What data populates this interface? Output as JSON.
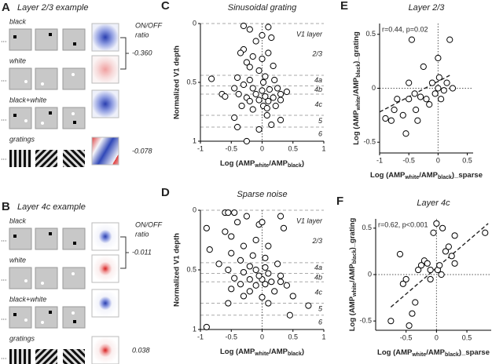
{
  "stimulus_panels": [
    {
      "letter": "A",
      "title": "Layer 2/3 example",
      "rows": [
        "black",
        "white",
        "black+white",
        "gratings"
      ],
      "ratio_header": [
        "ON/OFF",
        "ratio"
      ],
      "ratios": [
        "-0.360",
        "-0.078"
      ]
    },
    {
      "letter": "B",
      "title": "Layer 4c example",
      "rows": [
        "black",
        "white",
        "black+white",
        "gratings"
      ],
      "ratio_header": [
        "ON/OFF",
        "ratio"
      ],
      "ratios": [
        "-0.011",
        "0.038"
      ]
    }
  ],
  "chart_data": [
    {
      "type": "scatter",
      "letter": "C",
      "title": "Sinusoidal grating",
      "ylabel": "Normalized V1 depth",
      "xlabel_parts": [
        "Log (AMP",
        "white",
        "/AMP",
        "black",
        ")"
      ],
      "xlim": [
        -1,
        1
      ],
      "xticks": [
        -1,
        -0.5,
        0,
        0.5,
        1
      ],
      "ylim": [
        1,
        0
      ],
      "yticks": [
        0,
        0.5,
        1
      ],
      "zero_lines": [
        "x"
      ],
      "layer_header": "V1 layer",
      "layer_labels": [
        "2/3",
        "4a",
        "4b",
        "4c",
        "5",
        "6"
      ],
      "layer_boundaries": [
        0,
        0.44,
        0.53,
        0.6,
        0.78,
        0.88,
        1
      ],
      "x": [
        -0.3,
        -0.2,
        0.1,
        0.0,
        -0.1,
        0.15,
        -0.3,
        -0.35,
        -0.15,
        0.0,
        -0.25,
        0.18,
        0.1,
        -0.05,
        -0.2,
        0.05,
        -0.4,
        -0.2,
        0.02,
        0.2,
        -0.82,
        -0.65,
        -0.6,
        -0.45,
        -0.3,
        -0.15,
        0.0,
        0.12,
        0.25,
        0.3,
        -0.38,
        -0.25,
        -0.1,
        0.05,
        0.18,
        -0.05,
        0.1,
        -0.2,
        0.3,
        0.4,
        -0.33,
        0.02,
        0.08,
        -0.15,
        0.22,
        -0.45,
        0.3,
        -0.4,
        0.15,
        -0.05,
        -0.25,
        0.08
      ],
      "values": [
        0.02,
        0.05,
        0.03,
        0.1,
        0.15,
        0.12,
        0.22,
        0.25,
        0.28,
        0.3,
        0.33,
        0.36,
        0.25,
        0.4,
        0.37,
        0.45,
        0.46,
        0.48,
        0.5,
        0.48,
        0.47,
        0.6,
        0.62,
        0.55,
        0.52,
        0.55,
        0.57,
        0.56,
        0.55,
        0.6,
        0.6,
        0.63,
        0.6,
        0.62,
        0.63,
        0.65,
        0.66,
        0.66,
        0.65,
        0.58,
        0.7,
        0.7,
        0.72,
        0.73,
        0.7,
        0.8,
        0.82,
        0.88,
        0.86,
        0.9,
        1.0,
        0.78
      ]
    },
    {
      "type": "scatter",
      "letter": "D",
      "title": "Sparse noise",
      "ylabel": "Normalized V1 depth",
      "xlabel_parts": [
        "Log (AMP",
        "white",
        "/AMP",
        "black",
        ")"
      ],
      "xlim": [
        -1,
        1
      ],
      "xticks": [
        -1,
        -0.5,
        0,
        0.5,
        1
      ],
      "ylim": [
        1,
        0
      ],
      "yticks": [
        0,
        0.5,
        1
      ],
      "zero_lines": [
        "x"
      ],
      "layer_header": "V1 layer",
      "layer_labels": [
        "2/3",
        "4a",
        "4b",
        "4c",
        "5",
        "6"
      ],
      "layer_boundaries": [
        0,
        0.44,
        0.53,
        0.6,
        0.78,
        0.88,
        1
      ],
      "x": [
        -0.6,
        -0.55,
        -0.45,
        -0.25,
        0.3,
        -0.4,
        -0.05,
        0.0,
        -0.9,
        -0.6,
        0.35,
        -0.5,
        -0.1,
        -0.3,
        -0.85,
        0.1,
        -0.5,
        -0.15,
        0.05,
        -0.35,
        -0.7,
        -0.2,
        0.05,
        0.25,
        -0.55,
        -0.3,
        -0.1,
        0.1,
        0.3,
        -0.45,
        -0.2,
        0.0,
        0.15,
        -0.35,
        -0.1,
        0.05,
        0.4,
        -0.5,
        -0.2,
        0.2,
        -0.3,
        0.0,
        0.5,
        -0.55,
        0.1,
        0.75,
        -0.9,
        0.45,
        0.3,
        -0.05
      ],
      "values": [
        0.02,
        0.02,
        0.02,
        0.05,
        0.05,
        0.1,
        0.12,
        0.1,
        0.15,
        0.18,
        0.15,
        0.22,
        0.25,
        0.3,
        0.33,
        0.3,
        0.36,
        0.38,
        0.4,
        0.42,
        0.45,
        0.47,
        0.48,
        0.45,
        0.5,
        0.52,
        0.5,
        0.53,
        0.55,
        0.57,
        0.58,
        0.58,
        0.6,
        0.62,
        0.63,
        0.62,
        0.63,
        0.66,
        0.68,
        0.68,
        0.72,
        0.73,
        0.72,
        0.78,
        0.78,
        0.8,
        0.98,
        0.88,
        0.6,
        0.55
      ]
    },
    {
      "type": "scatter",
      "letter": "E",
      "title": "Layer 2/3",
      "annotation": "r=0.44, p=0.02",
      "xlabel_parts": [
        "Log (AMP",
        "white",
        "/AMP",
        "black",
        ")_sparse"
      ],
      "ylabel_parts": [
        "Log (AMP",
        "white",
        "/AMP",
        "black",
        ")_grating"
      ],
      "xlim": [
        -1,
        0.6
      ],
      "xticks": [
        -1,
        -0.5,
        0,
        0.5
      ],
      "ylim": [
        -0.6,
        0.6
      ],
      "yticks": [
        -0.5,
        0,
        0.5
      ],
      "zero_lines": [
        "x",
        "y"
      ],
      "fit_line": {
        "x": [
          -1,
          0.2
        ],
        "y": [
          -0.22,
          0.12
        ]
      },
      "x": [
        -0.9,
        -0.8,
        -0.75,
        -0.6,
        -0.55,
        -0.5,
        -0.45,
        -0.4,
        -0.38,
        -0.35,
        -0.3,
        -0.25,
        -0.2,
        -0.15,
        -0.1,
        -0.05,
        0.0,
        0.02,
        0.05,
        0.1,
        0.15,
        0.2,
        0.25,
        0.0,
        -0.5,
        -0.7
      ],
      "values": [
        -0.28,
        -0.3,
        -0.2,
        -0.25,
        -0.42,
        -0.1,
        0.45,
        -0.05,
        -0.2,
        -0.3,
        -0.08,
        0.2,
        -0.1,
        -0.15,
        0.05,
        -0.05,
        0.0,
        0.1,
        -0.1,
        -0.02,
        0.05,
        0.45,
        0.0,
        0.28,
        0.05,
        -0.1
      ]
    },
    {
      "type": "scatter",
      "letter": "F",
      "title": "Layer 4c",
      "annotation": "r=0.62, p<0.001",
      "xlabel_parts": [
        "Log (AMP",
        "white",
        "/AMP",
        "black",
        ")_sparse"
      ],
      "ylabel_parts": [
        "Log (AMP",
        "white",
        "/AMP",
        "black",
        ")_grating"
      ],
      "xlim": [
        -1,
        0.9
      ],
      "xticks": [
        -0.5,
        0,
        0.5
      ],
      "ylim": [
        -0.6,
        0.6
      ],
      "yticks": [
        -0.5,
        0,
        0.5
      ],
      "zero_lines": [
        "x",
        "y"
      ],
      "fit_line": {
        "x": [
          -0.75,
          0.85
        ],
        "y": [
          -0.35,
          0.55
        ]
      },
      "x": [
        -0.75,
        -0.6,
        -0.55,
        -0.5,
        -0.45,
        -0.4,
        -0.35,
        -0.3,
        -0.25,
        -0.2,
        -0.15,
        -0.1,
        -0.05,
        0.0,
        0.02,
        0.05,
        0.08,
        0.1,
        0.15,
        0.2,
        0.25,
        0.3,
        0.3,
        -0.1,
        0.8
      ],
      "values": [
        -0.5,
        0.22,
        -0.1,
        -0.05,
        -0.55,
        -0.42,
        -0.3,
        0.05,
        0.1,
        0.15,
        0.12,
        0.05,
        0.45,
        0.55,
        0.05,
        0.1,
        0.0,
        0.5,
        0.25,
        0.3,
        0.2,
        0.12,
        0.42,
        -0.05,
        0.45
      ]
    }
  ]
}
